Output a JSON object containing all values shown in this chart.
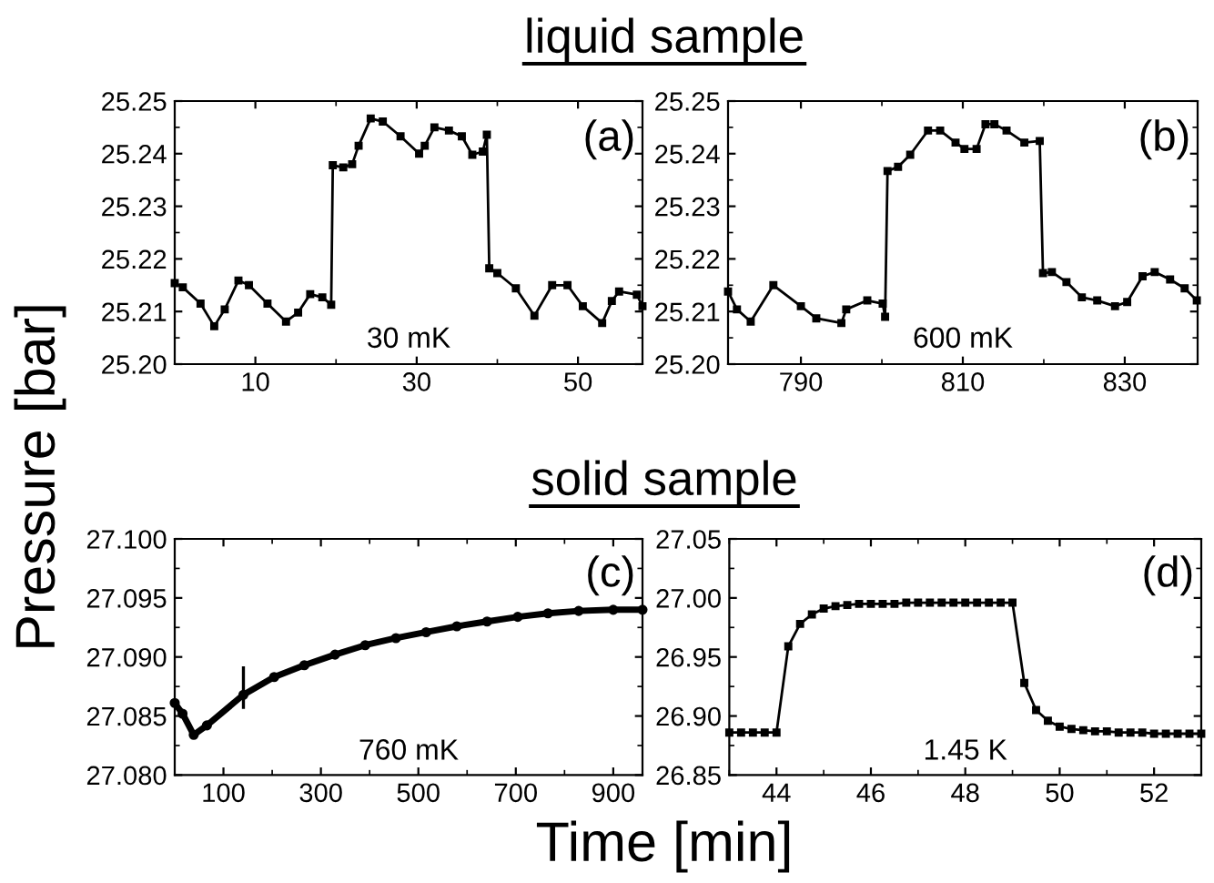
{
  "chart_data": [
    {
      "type": "line",
      "title": "liquid sample",
      "ylabel": "Pressure [bar]",
      "annotations": [
        "(a)",
        "30 mK"
      ],
      "marker": "square",
      "line_style": "solid",
      "grid": false,
      "xlim": [
        0,
        58
      ],
      "xticks": [
        10,
        30,
        50
      ],
      "ylim": [
        25.2,
        25.25
      ],
      "yticks": [
        {
          "value": 25.2,
          "label": "25.20"
        },
        {
          "value": 25.21,
          "label": "25.21"
        },
        {
          "value": 25.22,
          "label": "25.22"
        },
        {
          "value": 25.23,
          "label": "25.23"
        },
        {
          "value": 25.24,
          "label": "25.24"
        },
        {
          "value": 25.25,
          "label": "25.25"
        }
      ],
      "series": [
        {
          "color": "#000000",
          "x": [
            0,
            1,
            3.2,
            4.9,
            6.2,
            7.9,
            9.2,
            11.5,
            13.8,
            15.3,
            16.8,
            18.3,
            19.4,
            19.6,
            20.9,
            22,
            22.8,
            24.3,
            25.8,
            28,
            30.3,
            31,
            32.2,
            34,
            35.6,
            36.9,
            38.2,
            38.7,
            39,
            40,
            42.3,
            44.6,
            46.8,
            48.7,
            50.6,
            53,
            54.2,
            55.1,
            57.3,
            58
          ],
          "values": [
            25.2154,
            25.2146,
            25.2115,
            25.2072,
            25.2104,
            25.2159,
            25.215,
            25.2115,
            25.2081,
            25.2098,
            25.2133,
            25.2127,
            25.2113,
            25.2378,
            25.2374,
            25.238,
            25.2415,
            25.2467,
            25.2461,
            25.2433,
            25.24,
            25.2415,
            25.245,
            25.2444,
            25.2433,
            25.2398,
            25.2404,
            25.2436,
            25.2182,
            25.2173,
            25.2144,
            25.2092,
            25.215,
            25.215,
            25.211,
            25.2078,
            25.212,
            25.2138,
            25.2132,
            25.211
          ]
        }
      ]
    },
    {
      "type": "line",
      "annotations": [
        "(b)",
        "600 mK"
      ],
      "marker": "square",
      "line_style": "solid",
      "grid": false,
      "xlim": [
        781,
        839
      ],
      "xticks": [
        790,
        810,
        830
      ],
      "ylim": [
        25.2,
        25.25
      ],
      "yticks": [
        {
          "value": 25.2,
          "label": "25.20"
        },
        {
          "value": 25.21,
          "label": "25.21"
        },
        {
          "value": 25.22,
          "label": "25.22"
        },
        {
          "value": 25.23,
          "label": "25.23"
        },
        {
          "value": 25.24,
          "label": "25.24"
        },
        {
          "value": 25.25,
          "label": "25.25"
        }
      ],
      "series": [
        {
          "color": "#000000",
          "x": [
            781,
            782.1,
            783.8,
            786.6,
            790,
            791.9,
            795,
            795.6,
            798.2,
            800.1,
            800.4,
            800.7,
            802,
            803.5,
            805.7,
            807.2,
            809.1,
            810.2,
            811.7,
            812.8,
            813.9,
            815.4,
            817.6,
            819.5,
            819.9,
            821,
            822.8,
            824.7,
            826.6,
            828.8,
            830.3,
            832.2,
            833.7,
            835.6,
            837.4,
            838.9
          ],
          "values": [
            25.2138,
            25.2104,
            25.2081,
            25.215,
            25.211,
            25.2087,
            25.2078,
            25.2104,
            25.2121,
            25.2115,
            25.209,
            25.2367,
            25.2375,
            25.2398,
            25.2444,
            25.2444,
            25.2421,
            25.2409,
            25.2409,
            25.2456,
            25.2456,
            25.2444,
            25.2421,
            25.2424,
            25.2173,
            25.2175,
            25.2156,
            25.2127,
            25.2121,
            25.211,
            25.2118,
            25.2167,
            25.2175,
            25.2161,
            25.2144,
            25.2121
          ]
        }
      ]
    },
    {
      "type": "line",
      "title": "solid sample",
      "xlabel": "Time [min]",
      "annotations": [
        "(c)",
        "760 mK"
      ],
      "marker": "circle",
      "line_style": "solid",
      "grid": false,
      "xlim": [
        0,
        960
      ],
      "xticks": [
        100,
        300,
        500,
        700,
        900
      ],
      "ylim": [
        27.08,
        27.1
      ],
      "yticks": [
        {
          "value": 27.08,
          "label": "27.080"
        },
        {
          "value": 27.085,
          "label": "27.085"
        },
        {
          "value": 27.09,
          "label": "27.090"
        },
        {
          "value": 27.095,
          "label": "27.095"
        },
        {
          "value": 27.1,
          "label": "27.100"
        }
      ],
      "series": [
        {
          "color": "#000000",
          "x": [
            0,
            16,
            39,
            66,
            141,
            204,
            266,
            329,
            391,
            454,
            516,
            579,
            641,
            704,
            766,
            829,
            900,
            960
          ],
          "values": [
            27.0861,
            27.0852,
            27.0834,
            27.0842,
            27.0868,
            27.0883,
            27.0893,
            27.0902,
            27.091,
            27.0916,
            27.0921,
            27.0926,
            27.093,
            27.0934,
            27.0937,
            27.0939,
            27.094,
            27.094
          ],
          "errors": [
            null,
            null,
            null,
            null,
            [
              27.0856,
              27.0892
            ],
            null,
            null,
            null,
            null,
            null,
            null,
            null,
            null,
            null,
            null,
            null,
            null,
            null
          ]
        }
      ]
    },
    {
      "type": "line",
      "annotations": [
        "(d)",
        "1.45 K"
      ],
      "marker": "square",
      "line_style": "solid",
      "grid": false,
      "xlim": [
        43,
        53
      ],
      "xticks": [
        44,
        46,
        48,
        50,
        52
      ],
      "ylim": [
        26.85,
        27.05
      ],
      "yticks": [
        {
          "value": 26.85,
          "label": "26.85"
        },
        {
          "value": 26.9,
          "label": "26.90"
        },
        {
          "value": 26.95,
          "label": "26.95"
        },
        {
          "value": 27.0,
          "label": "27.00"
        },
        {
          "value": 27.05,
          "label": "27.05"
        }
      ],
      "series": [
        {
          "color": "#000000",
          "x": [
            43,
            43.25,
            43.5,
            43.75,
            44,
            44.25,
            44.5,
            44.75,
            45,
            45.25,
            45.5,
            45.75,
            46,
            46.25,
            46.5,
            46.75,
            47,
            47.25,
            47.5,
            47.75,
            48,
            48.25,
            48.5,
            48.75,
            49,
            49.25,
            49.5,
            49.75,
            50,
            50.25,
            50.5,
            50.75,
            51,
            51.25,
            51.5,
            51.75,
            52,
            52.25,
            52.5,
            52.75,
            53
          ],
          "values": [
            26.886,
            26.886,
            26.886,
            26.886,
            26.886,
            26.959,
            26.978,
            26.986,
            26.991,
            26.993,
            26.994,
            26.995,
            26.995,
            26.995,
            26.995,
            26.996,
            26.996,
            26.996,
            26.996,
            26.996,
            26.996,
            26.996,
            26.996,
            26.996,
            26.996,
            26.928,
            26.905,
            26.896,
            26.891,
            26.889,
            26.888,
            26.887,
            26.887,
            26.886,
            26.886,
            26.886,
            26.885,
            26.885,
            26.885,
            26.885,
            26.885
          ]
        }
      ]
    }
  ]
}
